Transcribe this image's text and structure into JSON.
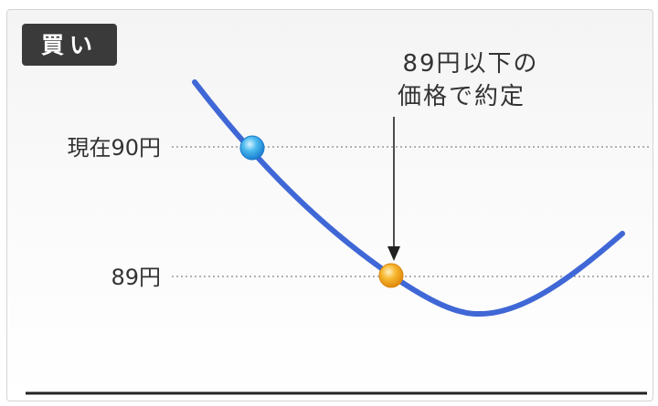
{
  "badge": {
    "label": "買い",
    "bg": "#3a3a3a",
    "fg": "#ffffff"
  },
  "levels": {
    "current": {
      "label": "現在90円",
      "price": 90
    },
    "target": {
      "label": "89円",
      "price": 89
    }
  },
  "annotation": {
    "line1": "89円以下の",
    "line2": "価格で約定"
  },
  "colors": {
    "curve": "#3f67d6",
    "current_point": "#43b2ea",
    "target_point": "#f6b72d",
    "text": "#333333",
    "baseline": "#222222"
  }
}
